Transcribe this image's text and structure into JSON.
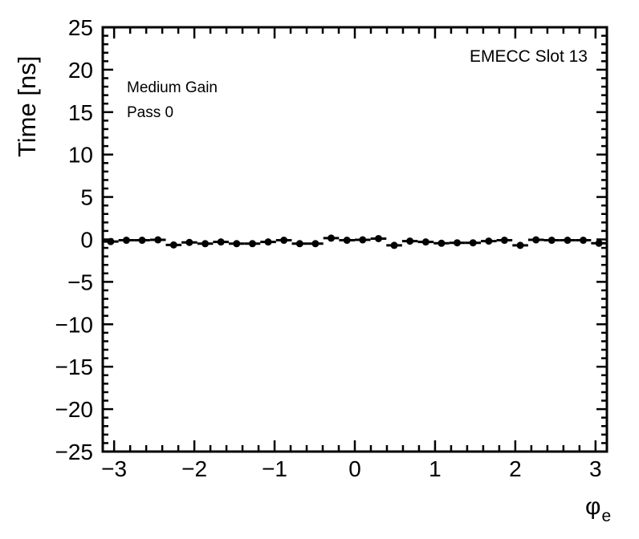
{
  "page": {
    "background_color": "#ffffff",
    "foreground_color": "#000000"
  },
  "annotations": {
    "y_axis_title": "Time [ns]",
    "corner_label": "EMECC Slot 13",
    "gain_label": "Medium Gain",
    "pass_label": "Pass 0",
    "x_axis_symbol": "φ",
    "x_axis_subscript": "e"
  },
  "chart_data": {
    "type": "scatter",
    "title": "",
    "xlabel": "phi_e",
    "ylabel": "Time [ns]",
    "xlim": [
      -3.1416,
      3.1416
    ],
    "ylim": [
      -25,
      25
    ],
    "x_major_ticks": [
      -3,
      -2,
      -1,
      0,
      1,
      2,
      3
    ],
    "x_minor_step": 0.2,
    "y_major_ticks": [
      -25,
      -20,
      -15,
      -10,
      -5,
      0,
      5,
      10,
      15,
      20,
      25
    ],
    "y_minor_step": 1,
    "grid": false,
    "legend": false,
    "marker": "filled-circle",
    "marker_color": "#000000",
    "bin_half_width": 0.098,
    "series": [
      {
        "name": "time-vs-phi",
        "x": [
          -3.043,
          -2.847,
          -2.651,
          -2.454,
          -2.258,
          -2.062,
          -1.865,
          -1.669,
          -1.473,
          -1.276,
          -1.08,
          -0.884,
          -0.687,
          -0.491,
          -0.295,
          -0.098,
          0.098,
          0.295,
          0.491,
          0.687,
          0.884,
          1.08,
          1.276,
          1.473,
          1.669,
          1.865,
          2.062,
          2.258,
          2.454,
          2.651,
          2.847,
          3.043
        ],
        "y": [
          -0.25,
          -0.1,
          -0.1,
          -0.05,
          -0.65,
          -0.35,
          -0.5,
          -0.3,
          -0.5,
          -0.5,
          -0.3,
          -0.1,
          -0.5,
          -0.5,
          0.15,
          -0.1,
          -0.05,
          0.1,
          -0.7,
          -0.2,
          -0.3,
          -0.45,
          -0.4,
          -0.4,
          -0.2,
          -0.1,
          -0.7,
          -0.05,
          -0.1,
          -0.1,
          -0.1,
          -0.45
        ]
      }
    ]
  }
}
